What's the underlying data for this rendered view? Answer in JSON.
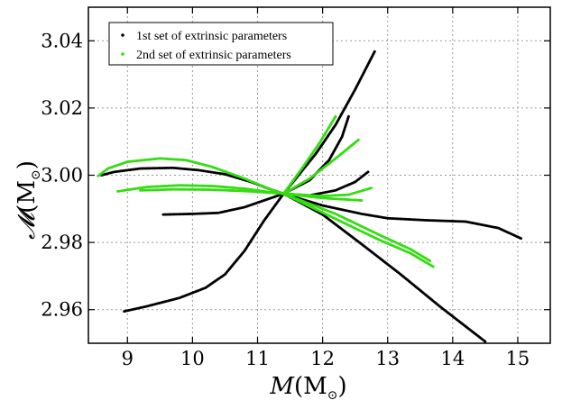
{
  "chart_data": {
    "type": "scatter",
    "xlabel": {
      "symbol": "M",
      "unit_main": "M",
      "unit_sub": "⊙"
    },
    "ylabel": {
      "symbol": "𝓜",
      "unit_main": "M",
      "unit_sub": "⊙"
    },
    "xlim": [
      8.4,
      15.5
    ],
    "ylim": [
      2.95,
      3.05
    ],
    "xticks": [
      9,
      10,
      11,
      12,
      13,
      14,
      15
    ],
    "yticks": [
      2.96,
      2.98,
      3.0,
      3.02,
      3.04
    ],
    "ytick_labels": [
      "2.96",
      "2.98",
      "3.00",
      "3.02",
      "3.04"
    ],
    "grid": true,
    "legend_position": "top-left",
    "center_point": [
      11.4,
      2.9945
    ],
    "series": [
      {
        "name": "1st set of extrinsic parameters",
        "color": "#000000",
        "curves": [
          [
            [
              8.6,
              3.0
            ],
            [
              8.8,
              3.001
            ],
            [
              9.2,
              3.002
            ],
            [
              9.7,
              3.0022
            ],
            [
              10.1,
              3.0015
            ],
            [
              10.5,
              3.0003
            ],
            [
              10.9,
              2.998
            ],
            [
              11.2,
              2.9958
            ],
            [
              11.4,
              2.9945
            ]
          ],
          [
            [
              8.95,
              2.9595
            ],
            [
              9.3,
              2.961
            ],
            [
              9.8,
              2.9635
            ],
            [
              10.2,
              2.9665
            ],
            [
              10.5,
              2.9705
            ],
            [
              10.8,
              2.9775
            ],
            [
              11.1,
              2.9865
            ],
            [
              11.4,
              2.9945
            ]
          ],
          [
            [
              9.55,
              2.9883
            ],
            [
              10.0,
              2.9885
            ],
            [
              10.4,
              2.9888
            ],
            [
              10.8,
              2.9905
            ],
            [
              11.1,
              2.9925
            ],
            [
              11.4,
              2.9945
            ]
          ],
          [
            [
              11.4,
              2.9945
            ],
            [
              11.9,
              3.0065
            ],
            [
              12.2,
              3.015
            ],
            [
              12.5,
              3.0255
            ],
            [
              12.8,
              3.0368
            ]
          ],
          [
            [
              11.4,
              2.9945
            ],
            [
              11.8,
              2.9985
            ],
            [
              12.1,
              3.0045
            ],
            [
              12.3,
              3.0115
            ],
            [
              12.4,
              3.0175
            ]
          ],
          [
            [
              11.4,
              2.9945
            ],
            [
              11.8,
              2.994
            ],
            [
              12.2,
              2.9955
            ],
            [
              12.5,
              2.998
            ],
            [
              12.7,
              3.001
            ]
          ],
          [
            [
              11.4,
              2.9945
            ],
            [
              12.0,
              2.991
            ],
            [
              12.6,
              2.9885
            ],
            [
              13.0,
              2.9872
            ],
            [
              13.6,
              2.9866
            ],
            [
              14.2,
              2.9862
            ],
            [
              14.7,
              2.9843
            ],
            [
              15.05,
              2.9812
            ]
          ],
          [
            [
              11.4,
              2.9945
            ],
            [
              12.0,
              2.9883
            ],
            [
              12.6,
              2.9795
            ],
            [
              13.2,
              2.9705
            ],
            [
              13.8,
              2.961
            ],
            [
              14.5,
              2.9505
            ]
          ]
        ]
      },
      {
        "name": "2nd set of extrinsic parameters",
        "color": "#33dd11",
        "curves": [
          [
            [
              8.55,
              2.9998
            ],
            [
              8.7,
              3.002
            ],
            [
              9.0,
              3.004
            ],
            [
              9.5,
              3.005
            ],
            [
              9.9,
              3.0045
            ],
            [
              10.3,
              3.0025
            ],
            [
              10.8,
              2.999
            ],
            [
              11.2,
              2.9958
            ],
            [
              11.4,
              2.9945
            ]
          ],
          [
            [
              8.85,
              2.9952
            ],
            [
              9.3,
              2.9965
            ],
            [
              9.8,
              2.997
            ],
            [
              10.3,
              2.9968
            ],
            [
              10.8,
              2.996
            ],
            [
              11.1,
              2.9952
            ],
            [
              11.4,
              2.9945
            ]
          ],
          [
            [
              9.2,
              2.9955
            ],
            [
              9.7,
              2.9958
            ],
            [
              10.3,
              2.9957
            ],
            [
              10.9,
              2.9952
            ],
            [
              11.4,
              2.9945
            ]
          ],
          [
            [
              11.4,
              2.9945
            ],
            [
              11.7,
              3.0025
            ],
            [
              11.95,
              3.0095
            ],
            [
              12.2,
              3.0175
            ]
          ],
          [
            [
              11.4,
              2.9945
            ],
            [
              11.8,
              2.999
            ],
            [
              12.2,
              3.005
            ],
            [
              12.55,
              3.0105
            ]
          ],
          [
            [
              11.4,
              2.9945
            ],
            [
              12.0,
              2.9938
            ],
            [
              12.4,
              2.9942
            ],
            [
              12.75,
              2.9962
            ]
          ],
          [
            [
              11.4,
              2.9945
            ],
            [
              12.0,
              2.9932
            ],
            [
              12.6,
              2.9925
            ]
          ],
          [
            [
              11.4,
              2.9945
            ],
            [
              12.2,
              2.987
            ],
            [
              12.9,
              2.9805
            ],
            [
              13.35,
              2.9768
            ],
            [
              13.7,
              2.9728
            ]
          ],
          [
            [
              11.4,
              2.9945
            ],
            [
              12.2,
              2.9885
            ],
            [
              12.9,
              2.982
            ],
            [
              13.35,
              2.978
            ],
            [
              13.65,
              2.9745
            ]
          ]
        ]
      }
    ]
  }
}
